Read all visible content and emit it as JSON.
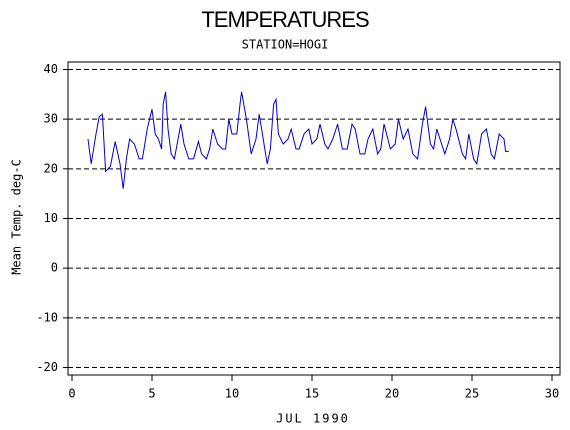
{
  "chart_data": {
    "type": "line",
    "title": "TEMPERATURES",
    "subtitle": "STATION=HOGI",
    "x_label": "JUL 1990",
    "y_label": "Mean Temp. deg-C",
    "xlim": [
      -0.25,
      30.5
    ],
    "xticks": [
      0,
      5,
      10,
      15,
      20,
      25,
      30
    ],
    "ylim": [
      -21.5,
      41.5
    ],
    "yticks": [
      -20,
      -10,
      0,
      10,
      20,
      30,
      40
    ],
    "grid": true,
    "series": [
      {
        "name": "Mean Temp",
        "color": "#0000cc",
        "x": [
          1.0,
          1.2,
          1.5,
          1.7,
          1.9,
          2.1,
          2.4,
          2.7,
          3.0,
          3.2,
          3.4,
          3.6,
          3.9,
          4.2,
          4.4,
          4.7,
          5.0,
          5.2,
          5.4,
          5.6,
          5.7,
          5.85,
          6.0,
          6.2,
          6.4,
          6.8,
          7.0,
          7.3,
          7.6,
          7.9,
          8.1,
          8.4,
          8.6,
          8.8,
          9.1,
          9.4,
          9.6,
          9.8,
          10.0,
          10.3,
          10.5,
          10.6,
          10.9,
          11.2,
          11.5,
          11.7,
          12.0,
          12.2,
          12.4,
          12.6,
          12.75,
          12.9,
          13.2,
          13.5,
          13.7,
          14.0,
          14.2,
          14.5,
          14.8,
          15.0,
          15.3,
          15.5,
          15.8,
          16.0,
          16.3,
          16.6,
          16.9,
          17.2,
          17.5,
          17.7,
          18.0,
          18.3,
          18.5,
          18.8,
          19.1,
          19.3,
          19.5,
          19.9,
          20.2,
          20.4,
          20.7,
          21.0,
          21.3,
          21.6,
          21.9,
          22.1,
          22.4,
          22.6,
          22.8,
          23.1,
          23.3,
          23.6,
          23.8,
          24.0,
          24.4,
          24.6,
          24.8,
          25.1,
          25.3,
          25.6,
          25.9,
          26.2,
          26.4,
          26.7,
          27.0,
          27.1,
          27.3
        ],
        "values": [
          26,
          21,
          27,
          30.5,
          31,
          19.5,
          20.5,
          25.5,
          21,
          16,
          22,
          26,
          25,
          22,
          22,
          28,
          32,
          27,
          26,
          24,
          33,
          35.5,
          28,
          23,
          22,
          29,
          25,
          22,
          22,
          25.5,
          23,
          22,
          24,
          28,
          25,
          24,
          24,
          30,
          27,
          27,
          33,
          35.5,
          30,
          23,
          26,
          31,
          25,
          21,
          24,
          33,
          34,
          27,
          25,
          26,
          28,
          24,
          24,
          27,
          28,
          25,
          26,
          29,
          25,
          24,
          26,
          29,
          24,
          24,
          29,
          28,
          23,
          23,
          26,
          28,
          23,
          24,
          29,
          24,
          25,
          30,
          26,
          28,
          23,
          22,
          29,
          32.5,
          25,
          24,
          28,
          25,
          23,
          26,
          30,
          28,
          23,
          22,
          27,
          22,
          21,
          27,
          28,
          23,
          22,
          27,
          26,
          23.5,
          23.5
        ]
      }
    ]
  }
}
